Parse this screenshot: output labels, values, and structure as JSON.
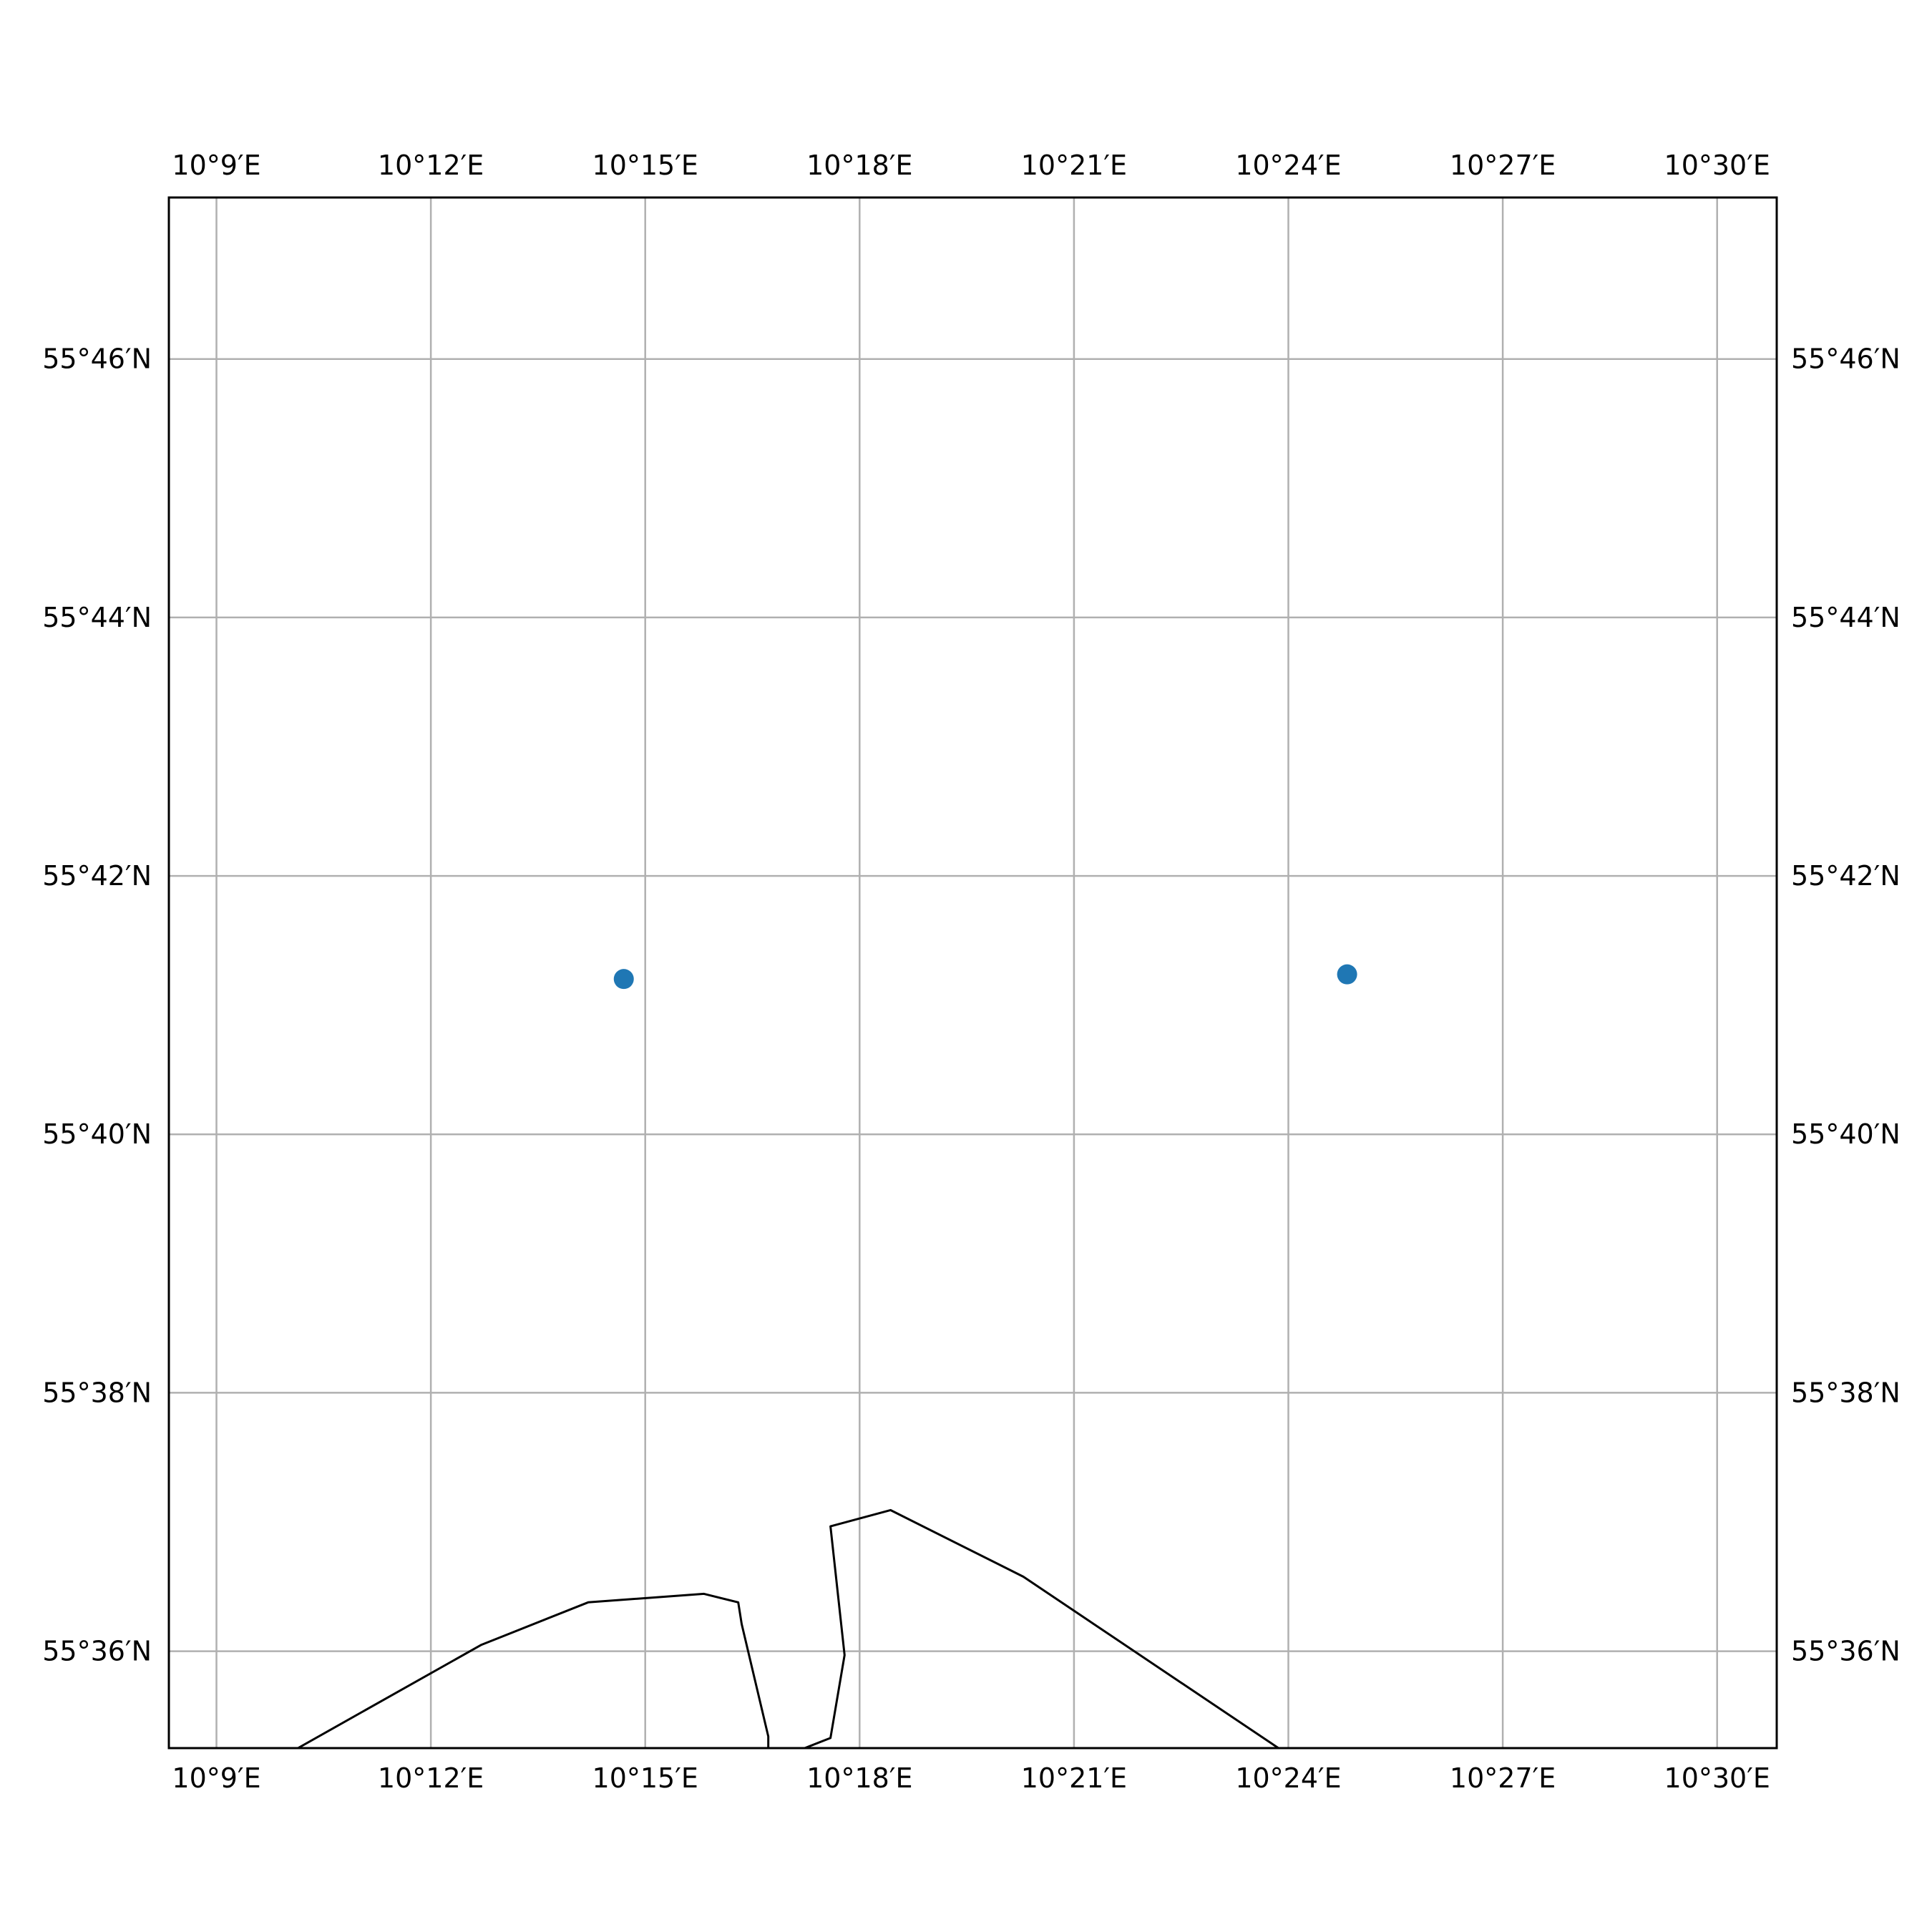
{
  "map": {
    "extent": {
      "lon_min": 10.1389,
      "lon_max": 10.5139,
      "lat_min": 55.5875,
      "lat_max": 55.7875
    },
    "longitude_ticks": [
      {
        "value": 10.15,
        "label": "10°9′E"
      },
      {
        "value": 10.2,
        "label": "10°12′E"
      },
      {
        "value": 10.25,
        "label": "10°15′E"
      },
      {
        "value": 10.3,
        "label": "10°18′E"
      },
      {
        "value": 10.35,
        "label": "10°21′E"
      },
      {
        "value": 10.4,
        "label": "10°24′E"
      },
      {
        "value": 10.45,
        "label": "10°27′E"
      },
      {
        "value": 10.5,
        "label": "10°30′E"
      }
    ],
    "latitude_ticks": [
      {
        "value": 55.76667,
        "label": "55°46′N"
      },
      {
        "value": 55.73333,
        "label": "55°44′N"
      },
      {
        "value": 55.7,
        "label": "55°42′N"
      },
      {
        "value": 55.66667,
        "label": "55°40′N"
      },
      {
        "value": 55.63333,
        "label": "55°38′N"
      },
      {
        "value": 55.6,
        "label": "55°36′N"
      }
    ],
    "grid": true,
    "colors": {
      "grid": "#b0b0b0",
      "coastline": "#000000",
      "frame": "#000000",
      "point": "#1f77b4"
    },
    "points": [
      {
        "lon": 10.245,
        "lat": 55.6867
      },
      {
        "lon": 10.4137,
        "lat": 55.6873
      }
    ],
    "coastline": [
      [
        10.169,
        55.5875
      ],
      [
        10.2117,
        55.6008
      ],
      [
        10.2367,
        55.6063
      ],
      [
        10.2637,
        55.6074
      ],
      [
        10.2717,
        55.6063
      ],
      [
        10.2725,
        55.6035
      ],
      [
        10.2787,
        55.589
      ],
      [
        10.2787,
        55.5875
      ],
      [
        null,
        null
      ],
      [
        10.2872,
        55.5875
      ],
      [
        10.2932,
        55.5888
      ],
      [
        10.2965,
        55.5995
      ],
      [
        10.2932,
        55.6161
      ],
      [
        10.3072,
        55.6182
      ],
      [
        10.3382,
        55.6096
      ],
      [
        10.3977,
        55.5875
      ]
    ]
  }
}
